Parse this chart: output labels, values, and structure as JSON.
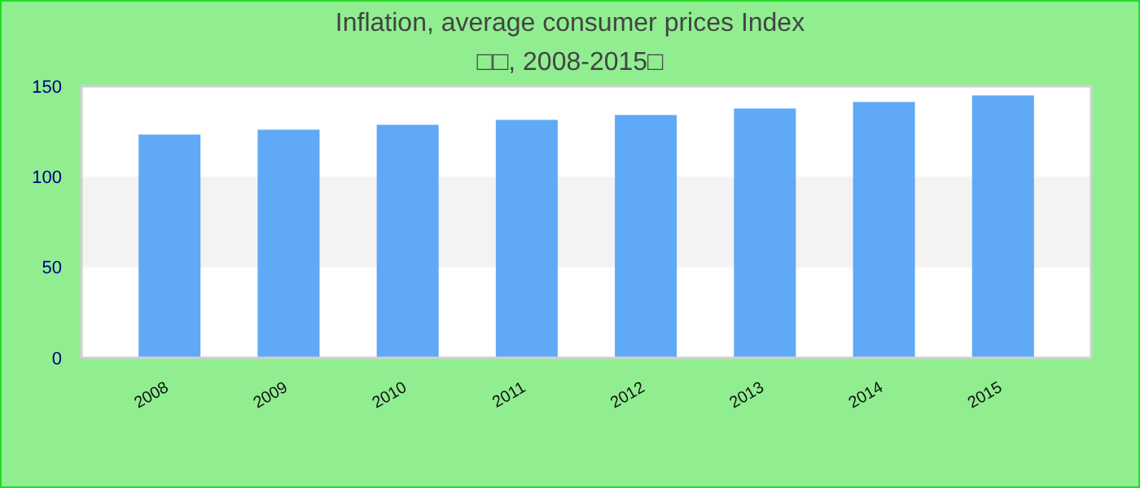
{
  "chart_data": {
    "type": "bar",
    "title": "Inflation, average consumer prices  Index",
    "subtitle": "□□, 2008-2015□",
    "categories": [
      "2008",
      "2009",
      "2010",
      "2011",
      "2012",
      "2013",
      "2014",
      "2015"
    ],
    "values": [
      123.3,
      126,
      128.7,
      131.4,
      134.1,
      137.7,
      141.3,
      144.9
    ],
    "color": "#60a9f6",
    "ylim": [
      0,
      150
    ],
    "yticks": [
      0,
      50,
      100,
      150
    ],
    "grid": false,
    "bands": [
      {
        "axis": "y",
        "from": 50,
        "to": 100,
        "color": "#f3f3f3"
      }
    ]
  }
}
